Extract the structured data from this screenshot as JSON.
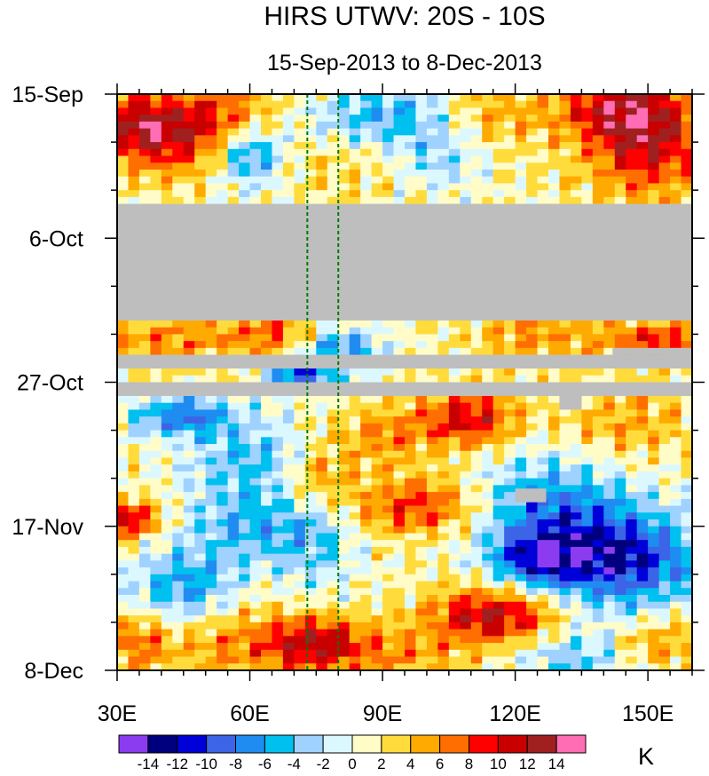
{
  "chart_data": {
    "type": "heatmap",
    "title": "HIRS UTWV: 20S - 10S",
    "subtitle": "15-Sep-2013 to 8-Dec-2013",
    "x_axis": {
      "range": [
        30,
        160
      ],
      "ticks": [
        30,
        60,
        90,
        120,
        150
      ],
      "tick_labels": [
        "30E",
        "60E",
        "90E",
        "120E",
        "150E"
      ],
      "minor_step": 5
    },
    "y_axis": {
      "range_days": [
        0,
        84
      ],
      "ticks": [
        0,
        21,
        42,
        63,
        84
      ],
      "tick_labels": [
        "15-Sep",
        "6-Oct",
        "27-Oct",
        "17-Nov",
        "8-Dec"
      ],
      "minor_step": 7
    },
    "colorbar": {
      "unit": "K",
      "levels": [
        -14,
        -12,
        -10,
        -8,
        -6,
        -4,
        -2,
        0,
        2,
        4,
        6,
        8,
        10,
        12,
        14
      ],
      "level_labels": [
        "-14",
        "-12",
        "-10",
        "-8",
        "-6",
        "-4",
        "-2",
        "0",
        "2",
        "4",
        "6",
        "8",
        "10",
        "12",
        "14"
      ],
      "colors": [
        "#8c3cf0",
        "#00007e",
        "#0000d8",
        "#3c64e6",
        "#1e8cf0",
        "#00c0f0",
        "#a0d2ff",
        "#dcf8ff",
        "#fffcc8",
        "#ffdc3c",
        "#ffaa00",
        "#ff6e00",
        "#ff0000",
        "#c80000",
        "#a02020",
        "#ff6eb4"
      ]
    },
    "reference_lines_lon": [
      73,
      80
    ],
    "missing_periods": [
      {
        "lon_range": [
          30,
          160
        ],
        "day_range": [
          16,
          33
        ]
      },
      {
        "lon_range": [
          30,
          160
        ],
        "day_range": [
          38,
          40
        ]
      },
      {
        "lon_range": [
          30,
          160
        ],
        "day_range": [
          42,
          44
        ]
      },
      {
        "lon_range": [
          142,
          160
        ],
        "day_range": [
          37,
          38
        ]
      },
      {
        "lon_range": [
          130,
          135
        ],
        "day_range": [
          44,
          46
        ]
      },
      {
        "lon_range": [
          120,
          127
        ],
        "day_range": [
          57.5,
          59.5
        ]
      }
    ],
    "anomaly_features": [
      {
        "lon": 42,
        "day": 6,
        "a": 10,
        "slon": 9,
        "sday": 4
      },
      {
        "lon": 33,
        "day": 4,
        "a": 6,
        "slon": 5,
        "sday": 3
      },
      {
        "lon": 55,
        "day": 2,
        "a": 5,
        "slon": 9,
        "sday": 3
      },
      {
        "lon": 60,
        "day": 9,
        "a": -8,
        "slon": 5,
        "sday": 3
      },
      {
        "lon": 90,
        "day": 3,
        "a": -6,
        "slon": 12,
        "sday": 3
      },
      {
        "lon": 103,
        "day": 9,
        "a": -4,
        "slon": 7,
        "sday": 3
      },
      {
        "lon": 115,
        "day": 3,
        "a": 4,
        "slon": 8,
        "sday": 4
      },
      {
        "lon": 150,
        "day": 6,
        "a": 11,
        "slon": 10,
        "sday": 6
      },
      {
        "lon": 140,
        "day": 2,
        "a": 6,
        "slon": 9,
        "sday": 3
      },
      {
        "lon": 78,
        "day": 11,
        "a": 2,
        "slon": 10,
        "sday": 3
      },
      {
        "lon": 40,
        "day": 36,
        "a": 5,
        "slon": 12,
        "sday": 3
      },
      {
        "lon": 80,
        "day": 37,
        "a": -8,
        "slon": 6,
        "sday": 2
      },
      {
        "lon": 125,
        "day": 35,
        "a": 5,
        "slon": 10,
        "sday": 3
      },
      {
        "lon": 152,
        "day": 36,
        "a": 8,
        "slon": 8,
        "sday": 2
      },
      {
        "lon": 65,
        "day": 35,
        "a": 6,
        "slon": 8,
        "sday": 2
      },
      {
        "lon": 45,
        "day": 47,
        "a": -9,
        "slon": 8,
        "sday": 2
      },
      {
        "lon": 72,
        "day": 41,
        "a": -10,
        "slon": 6,
        "sday": 1.5
      },
      {
        "lon": 110,
        "day": 47,
        "a": 9,
        "slon": 8,
        "sday": 3
      },
      {
        "lon": 90,
        "day": 50,
        "a": 5,
        "slon": 9,
        "sday": 3
      },
      {
        "lon": 145,
        "day": 48,
        "a": 4,
        "slon": 10,
        "sday": 4
      },
      {
        "lon": 60,
        "day": 53,
        "a": -5,
        "slon": 10,
        "sday": 4
      },
      {
        "lon": 75,
        "day": 56,
        "a": 5,
        "slon": 5,
        "sday": 3
      },
      {
        "lon": 98,
        "day": 60,
        "a": 8,
        "slon": 10,
        "sday": 3
      },
      {
        "lon": 128,
        "day": 60,
        "a": -8,
        "slon": 12,
        "sday": 5
      },
      {
        "lon": 145,
        "day": 68,
        "a": -12,
        "slon": 12,
        "sday": 5
      },
      {
        "lon": 125,
        "day": 68,
        "a": -10,
        "slon": 8,
        "sday": 3
      },
      {
        "lon": 32,
        "day": 62,
        "a": 10,
        "slon": 5,
        "sday": 2
      },
      {
        "lon": 60,
        "day": 63,
        "a": -6,
        "slon": 10,
        "sday": 4
      },
      {
        "lon": 45,
        "day": 72,
        "a": -7,
        "slon": 8,
        "sday": 4
      },
      {
        "lon": 75,
        "day": 66,
        "a": -4,
        "slon": 6,
        "sday": 5
      },
      {
        "lon": 115,
        "day": 76,
        "a": 11,
        "slon": 10,
        "sday": 3
      },
      {
        "lon": 75,
        "day": 80,
        "a": 10,
        "slon": 8,
        "sday": 3
      },
      {
        "lon": 55,
        "day": 80,
        "a": 5,
        "slon": 10,
        "sday": 4
      },
      {
        "lon": 35,
        "day": 80,
        "a": 6,
        "slon": 5,
        "sday": 3
      },
      {
        "lon": 95,
        "day": 82,
        "a": 4,
        "slon": 10,
        "sday": 3
      },
      {
        "lon": 152,
        "day": 80,
        "a": 5,
        "slon": 8,
        "sday": 3
      },
      {
        "lon": 135,
        "day": 82,
        "a": -5,
        "slon": 10,
        "sday": 3
      }
    ]
  }
}
